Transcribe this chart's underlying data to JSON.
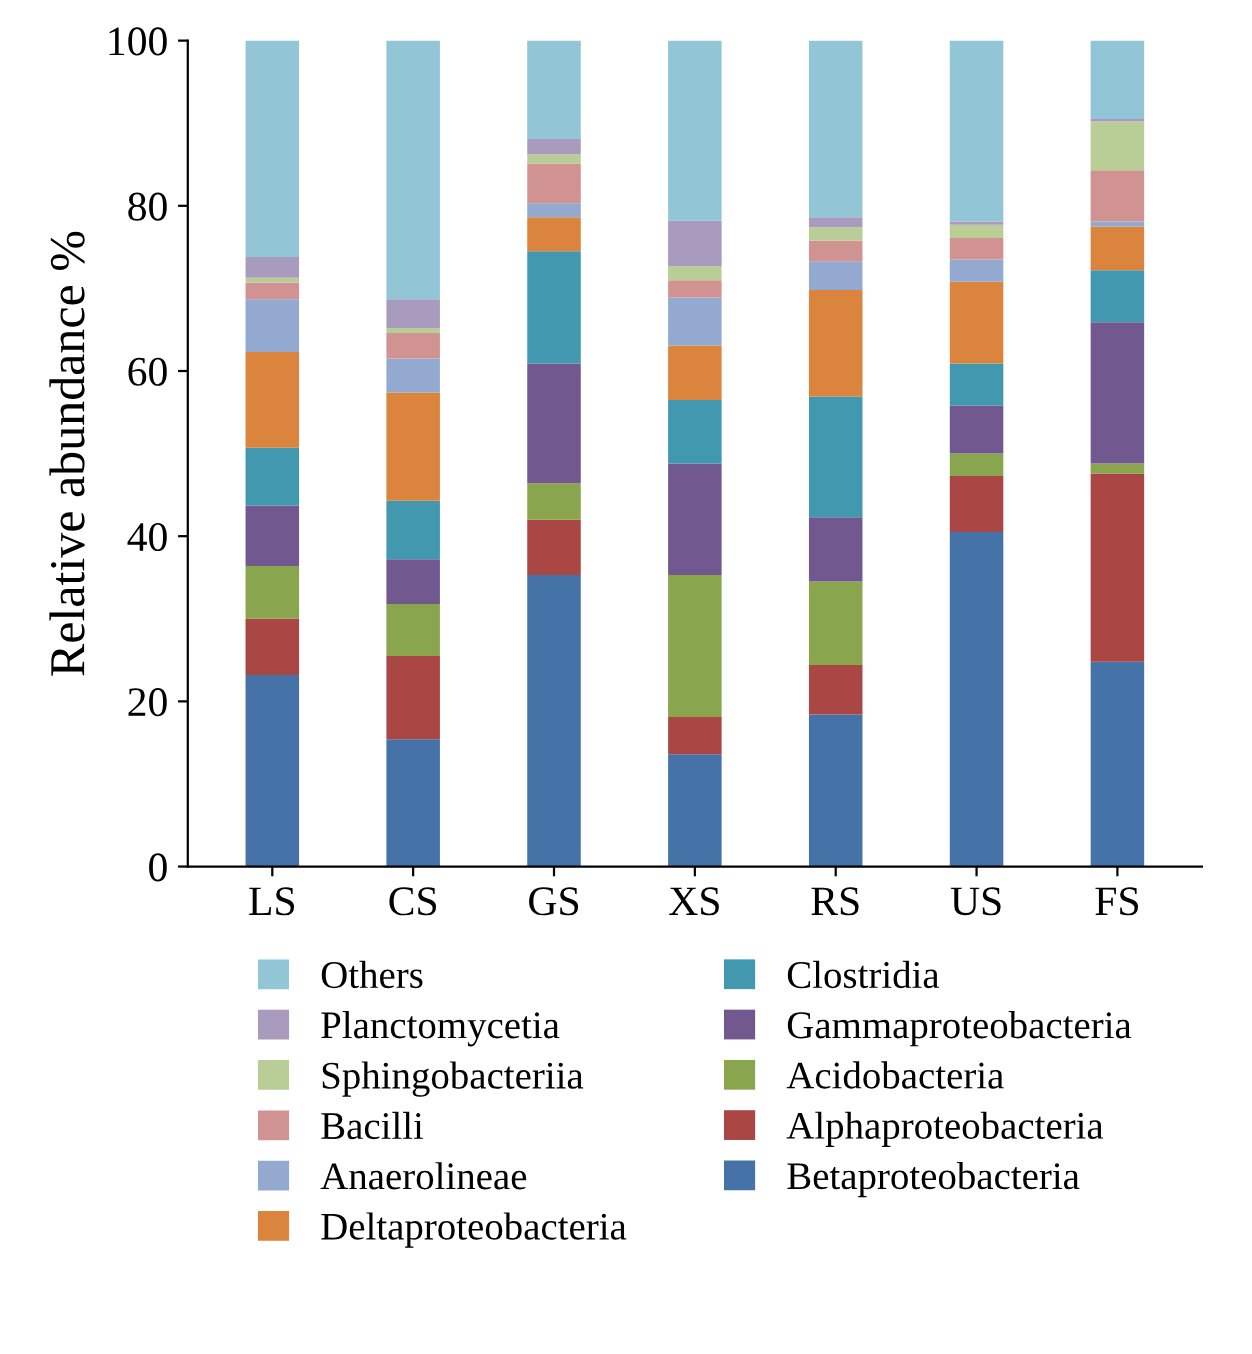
{
  "chart_data": {
    "type": "bar",
    "stacked": true,
    "ylabel": "Relative abundance %",
    "categories": [
      "LS",
      "CS",
      "GS",
      "XS",
      "RS",
      "US",
      "FS"
    ],
    "ylim": [
      0,
      100
    ],
    "yticks": [
      0,
      20,
      40,
      60,
      80,
      100
    ],
    "grid": false,
    "legend": "bottom",
    "series": [
      {
        "name": "Betaproteobacteria",
        "color": "#4572a7",
        "values": [
          23.2,
          15.4,
          35.3,
          13.6,
          18.4,
          40.5,
          24.8
        ]
      },
      {
        "name": "Alphaproteobacteria",
        "color": "#aa4643",
        "values": [
          6.8,
          10.1,
          6.7,
          4.5,
          6.0,
          6.8,
          22.8
        ]
      },
      {
        "name": "Acidobacteria",
        "color": "#89a54e",
        "values": [
          6.4,
          6.3,
          4.4,
          17.2,
          10.1,
          2.7,
          1.2
        ]
      },
      {
        "name": "Gammaproteobacteria",
        "color": "#71588f",
        "values": [
          7.3,
          5.4,
          14.5,
          13.5,
          7.8,
          5.8,
          17.1
        ]
      },
      {
        "name": "Clostridia",
        "color": "#4198af",
        "values": [
          7.0,
          7.1,
          13.6,
          7.7,
          14.6,
          5.1,
          6.3
        ]
      },
      {
        "name": "Deltaproteobacteria",
        "color": "#db843d",
        "values": [
          11.6,
          13.1,
          4.1,
          6.6,
          12.9,
          9.9,
          5.3
        ]
      },
      {
        "name": "Anaerolineae",
        "color": "#93a9cf",
        "values": [
          6.4,
          4.1,
          1.7,
          5.8,
          3.5,
          2.7,
          0.6
        ]
      },
      {
        "name": "Bacilli",
        "color": "#d19392",
        "values": [
          2.0,
          3.1,
          4.8,
          2.1,
          2.5,
          2.6,
          6.2
        ]
      },
      {
        "name": "Sphingobacteriia",
        "color": "#b9cd96",
        "values": [
          0.6,
          0.6,
          1.1,
          1.7,
          1.6,
          1.6,
          5.9
        ]
      },
      {
        "name": "Planctomycetia",
        "color": "#a99bbd",
        "values": [
          2.5,
          3.5,
          1.9,
          5.5,
          1.2,
          0.4,
          0.3
        ]
      },
      {
        "name": "Others",
        "color": "#92c5d6",
        "values": [
          26.2,
          31.3,
          11.9,
          21.8,
          21.4,
          21.9,
          9.5
        ]
      }
    ]
  }
}
